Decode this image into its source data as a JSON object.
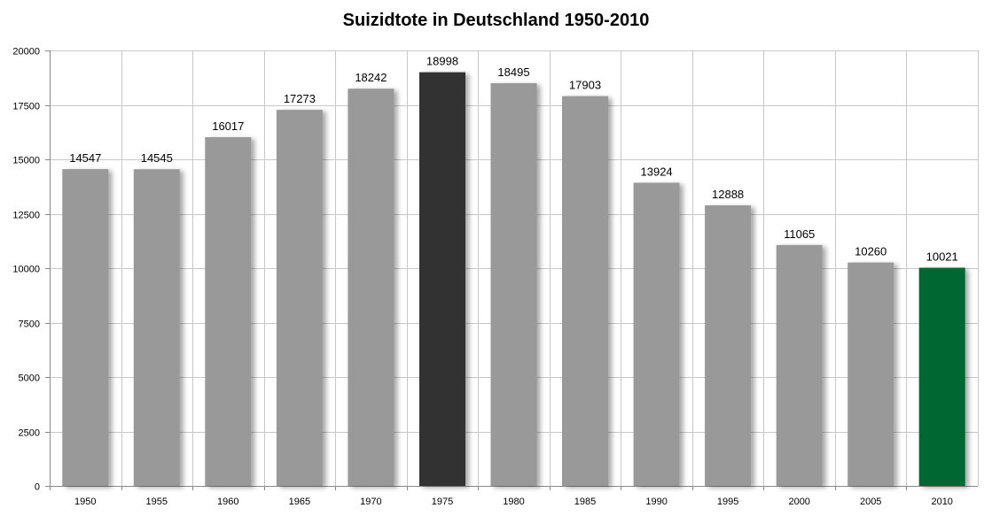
{
  "chart_data": {
    "type": "bar",
    "title": "Suizidtote in Deutschland 1950-2010",
    "xlabel": "",
    "ylabel": "",
    "categories": [
      "1950",
      "1955",
      "1960",
      "1965",
      "1970",
      "1975",
      "1980",
      "1985",
      "1990",
      "1995",
      "2000",
      "2005",
      "2010"
    ],
    "values": [
      14547,
      14545,
      16017,
      17273,
      18242,
      18998,
      18495,
      17903,
      13924,
      12888,
      11065,
      10260,
      10021
    ],
    "data_labels": [
      "14547",
      "14545",
      "16017",
      "17273",
      "18242",
      "18998",
      "18495",
      "17903",
      "13924",
      "12888",
      "11065",
      "10260",
      "10021"
    ],
    "ylim": [
      0,
      20000
    ],
    "yticks": [
      0,
      2500,
      5000,
      7500,
      10000,
      12500,
      15000,
      17500,
      20000
    ],
    "ytick_labels": [
      "0",
      "2500",
      "5000",
      "7500",
      "10000",
      "12500",
      "15000",
      "17500",
      "20000"
    ],
    "grid": true,
    "legend": "none",
    "colors": {
      "default_bar": "#999999",
      "highlight_max": "#333333",
      "highlight_last": "#006633",
      "grid": "#c8c8c8",
      "axis": "#8a8a8a"
    },
    "bar_colors": [
      "#999999",
      "#999999",
      "#999999",
      "#999999",
      "#999999",
      "#333333",
      "#999999",
      "#999999",
      "#999999",
      "#999999",
      "#999999",
      "#999999",
      "#006633"
    ]
  }
}
